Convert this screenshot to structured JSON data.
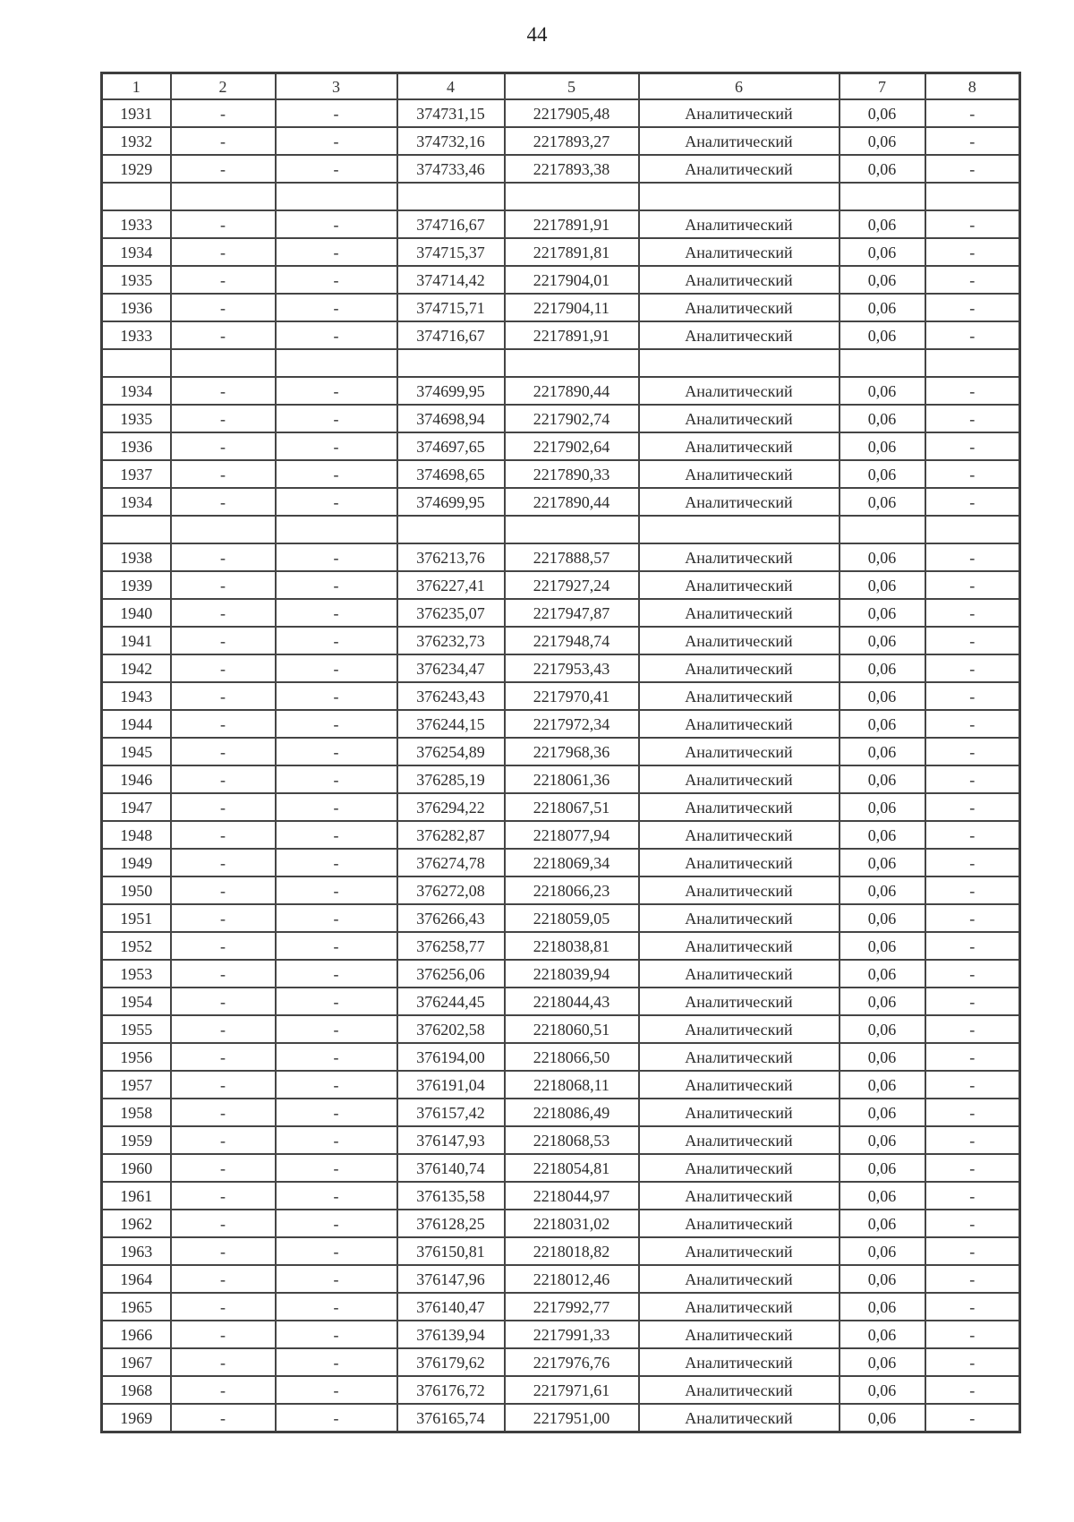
{
  "page": {
    "number": "44"
  },
  "table": {
    "headers": [
      "1",
      "2",
      "3",
      "4",
      "5",
      "6",
      "7",
      "8"
    ],
    "rows": [
      [
        "1931",
        "-",
        "-",
        "374731,15",
        "2217905,48",
        "Аналитический",
        "0,06",
        "-"
      ],
      [
        "1932",
        "-",
        "-",
        "374732,16",
        "2217893,27",
        "Аналитический",
        "0,06",
        "-"
      ],
      [
        "1929",
        "-",
        "-",
        "374733,46",
        "2217893,38",
        "Аналитический",
        "0,06",
        "-"
      ],
      [
        "",
        "",
        "",
        "",
        "",
        "",
        "",
        ""
      ],
      [
        "1933",
        "-",
        "-",
        "374716,67",
        "2217891,91",
        "Аналитический",
        "0,06",
        "-"
      ],
      [
        "1934",
        "-",
        "-",
        "374715,37",
        "2217891,81",
        "Аналитический",
        "0,06",
        "-"
      ],
      [
        "1935",
        "-",
        "-",
        "374714,42",
        "2217904,01",
        "Аналитический",
        "0,06",
        "-"
      ],
      [
        "1936",
        "-",
        "-",
        "374715,71",
        "2217904,11",
        "Аналитический",
        "0,06",
        "-"
      ],
      [
        "1933",
        "-",
        "-",
        "374716,67",
        "2217891,91",
        "Аналитический",
        "0,06",
        "-"
      ],
      [
        "",
        "",
        "",
        "",
        "",
        "",
        "",
        ""
      ],
      [
        "1934",
        "-",
        "-",
        "374699,95",
        "2217890,44",
        "Аналитический",
        "0,06",
        "-"
      ],
      [
        "1935",
        "-",
        "-",
        "374698,94",
        "2217902,74",
        "Аналитический",
        "0,06",
        "-"
      ],
      [
        "1936",
        "-",
        "-",
        "374697,65",
        "2217902,64",
        "Аналитический",
        "0,06",
        "-"
      ],
      [
        "1937",
        "-",
        "-",
        "374698,65",
        "2217890,33",
        "Аналитический",
        "0,06",
        "-"
      ],
      [
        "1934",
        "-",
        "-",
        "374699,95",
        "2217890,44",
        "Аналитический",
        "0,06",
        "-"
      ],
      [
        "",
        "",
        "",
        "",
        "",
        "",
        "",
        ""
      ],
      [
        "1938",
        "-",
        "-",
        "376213,76",
        "2217888,57",
        "Аналитический",
        "0,06",
        "-"
      ],
      [
        "1939",
        "-",
        "-",
        "376227,41",
        "2217927,24",
        "Аналитический",
        "0,06",
        "-"
      ],
      [
        "1940",
        "-",
        "-",
        "376235,07",
        "2217947,87",
        "Аналитический",
        "0,06",
        "-"
      ],
      [
        "1941",
        "-",
        "-",
        "376232,73",
        "2217948,74",
        "Аналитический",
        "0,06",
        "-"
      ],
      [
        "1942",
        "-",
        "-",
        "376234,47",
        "2217953,43",
        "Аналитический",
        "0,06",
        "-"
      ],
      [
        "1943",
        "-",
        "-",
        "376243,43",
        "2217970,41",
        "Аналитический",
        "0,06",
        "-"
      ],
      [
        "1944",
        "-",
        "-",
        "376244,15",
        "2217972,34",
        "Аналитический",
        "0,06",
        "-"
      ],
      [
        "1945",
        "-",
        "-",
        "376254,89",
        "2217968,36",
        "Аналитический",
        "0,06",
        "-"
      ],
      [
        "1946",
        "-",
        "-",
        "376285,19",
        "2218061,36",
        "Аналитический",
        "0,06",
        "-"
      ],
      [
        "1947",
        "-",
        "-",
        "376294,22",
        "2218067,51",
        "Аналитический",
        "0,06",
        "-"
      ],
      [
        "1948",
        "-",
        "-",
        "376282,87",
        "2218077,94",
        "Аналитический",
        "0,06",
        "-"
      ],
      [
        "1949",
        "-",
        "-",
        "376274,78",
        "2218069,34",
        "Аналитический",
        "0,06",
        "-"
      ],
      [
        "1950",
        "-",
        "-",
        "376272,08",
        "2218066,23",
        "Аналитический",
        "0,06",
        "-"
      ],
      [
        "1951",
        "-",
        "-",
        "376266,43",
        "2218059,05",
        "Аналитический",
        "0,06",
        "-"
      ],
      [
        "1952",
        "-",
        "-",
        "376258,77",
        "2218038,81",
        "Аналитический",
        "0,06",
        "-"
      ],
      [
        "1953",
        "-",
        "-",
        "376256,06",
        "2218039,94",
        "Аналитический",
        "0,06",
        "-"
      ],
      [
        "1954",
        "-",
        "-",
        "376244,45",
        "2218044,43",
        "Аналитический",
        "0,06",
        "-"
      ],
      [
        "1955",
        "-",
        "-",
        "376202,58",
        "2218060,51",
        "Аналитический",
        "0,06",
        "-"
      ],
      [
        "1956",
        "-",
        "-",
        "376194,00",
        "2218066,50",
        "Аналитический",
        "0,06",
        "-"
      ],
      [
        "1957",
        "-",
        "-",
        "376191,04",
        "2218068,11",
        "Аналитический",
        "0,06",
        "-"
      ],
      [
        "1958",
        "-",
        "-",
        "376157,42",
        "2218086,49",
        "Аналитический",
        "0,06",
        "-"
      ],
      [
        "1959",
        "-",
        "-",
        "376147,93",
        "2218068,53",
        "Аналитический",
        "0,06",
        "-"
      ],
      [
        "1960",
        "-",
        "-",
        "376140,74",
        "2218054,81",
        "Аналитический",
        "0,06",
        "-"
      ],
      [
        "1961",
        "-",
        "-",
        "376135,58",
        "2218044,97",
        "Аналитический",
        "0,06",
        "-"
      ],
      [
        "1962",
        "-",
        "-",
        "376128,25",
        "2218031,02",
        "Аналитический",
        "0,06",
        "-"
      ],
      [
        "1963",
        "-",
        "-",
        "376150,81",
        "2218018,82",
        "Аналитический",
        "0,06",
        "-"
      ],
      [
        "1964",
        "-",
        "-",
        "376147,96",
        "2218012,46",
        "Аналитический",
        "0,06",
        "-"
      ],
      [
        "1965",
        "-",
        "-",
        "376140,47",
        "2217992,77",
        "Аналитический",
        "0,06",
        "-"
      ],
      [
        "1966",
        "-",
        "-",
        "376139,94",
        "2217991,33",
        "Аналитический",
        "0,06",
        "-"
      ],
      [
        "1967",
        "-",
        "-",
        "376179,62",
        "2217976,76",
        "Аналитический",
        "0,06",
        "-"
      ],
      [
        "1968",
        "-",
        "-",
        "376176,72",
        "2217971,61",
        "Аналитический",
        "0,06",
        "-"
      ],
      [
        "1969",
        "-",
        "-",
        "376165,74",
        "2217951,00",
        "Аналитический",
        "0,06",
        "-"
      ]
    ]
  }
}
